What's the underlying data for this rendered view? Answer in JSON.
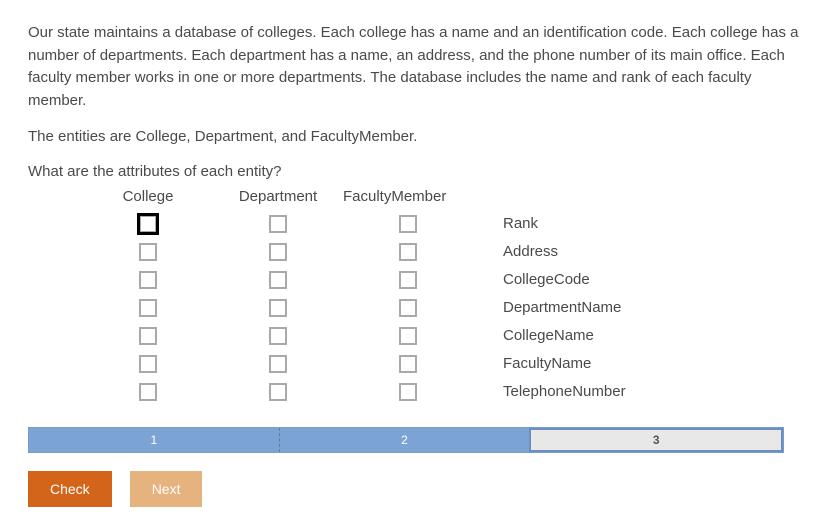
{
  "intro": {
    "p1": "Our state maintains a database of colleges. Each college has a name and an identification code. Each college has a number of departments. Each department has a name, an address, and the phone number of its main office. Each faculty member works in one or more departments. The database includes the name and rank of each faculty member.",
    "p2": "The entities are College, Department, and FacultyMember.",
    "question": "What are the attributes of each entity?"
  },
  "columns": {
    "col1": "College",
    "col2": "Department",
    "col3": "FacultyMember"
  },
  "attributes": [
    "Rank",
    "Address",
    "CollegeCode",
    "DepartmentName",
    "CollegeName",
    "FacultyName",
    "TelephoneNumber"
  ],
  "progress": {
    "s1": "1",
    "s2": "2",
    "s3": "3"
  },
  "buttons": {
    "check": "Check",
    "next": "Next"
  },
  "styling": {
    "checkbox_border": "#a9a9a9",
    "checkbox_focus_outline": "#000000",
    "progress_bg_active": "#7ba4d4",
    "progress_bg_current": "#e8e8e8",
    "progress_border": "#6c8ec2",
    "btn_check_bg": "#d3651a",
    "btn_next_bg": "#e6b37e",
    "text_color": "#4a4a4a",
    "font_size_body": 15,
    "font_size_progress": 12
  }
}
